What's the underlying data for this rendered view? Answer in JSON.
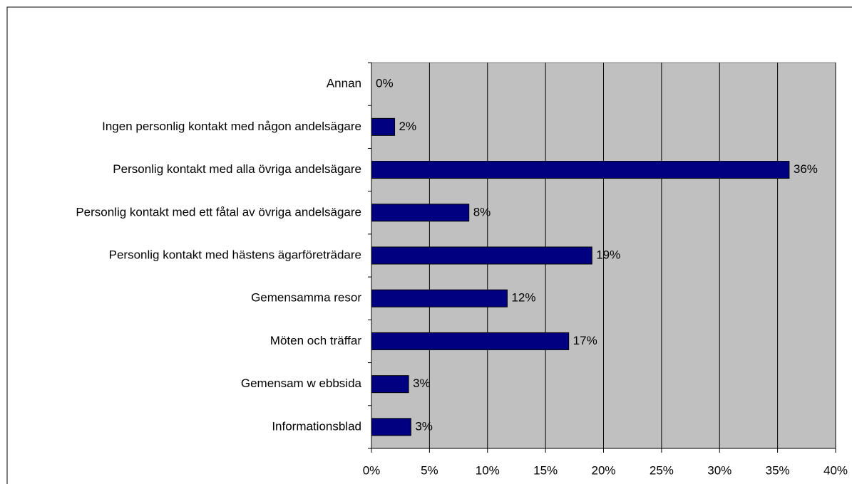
{
  "chart_data": {
    "type": "bar",
    "orientation": "horizontal",
    "categories": [
      "Annan",
      "Ingen personlig kontakt med någon andelsägare",
      "Personlig kontakt med alla övriga andelsägare",
      "Personlig kontakt med ett fåtal av övriga andelsägare",
      "Personlig kontakt med hästens ägarföreträdare",
      "Gemensamma resor",
      "Möten och träffar",
      "Gemensam w ebbsida",
      "Informationsblad"
    ],
    "values": [
      0,
      2,
      36,
      8.4,
      19,
      11.7,
      17,
      3.2,
      3.4
    ],
    "value_labels": [
      "0%",
      "2%",
      "36%",
      "8%",
      "19%",
      "12%",
      "17%",
      "3%",
      "3%"
    ],
    "color": "#000080",
    "xlim": [
      0,
      40
    ],
    "xticks": [
      {
        "value": 0,
        "label": "0%"
      },
      {
        "value": 5,
        "label": "5%"
      },
      {
        "value": 10,
        "label": "10%"
      },
      {
        "value": 15,
        "label": "15%"
      },
      {
        "value": 20,
        "label": "20%"
      },
      {
        "value": 25,
        "label": "25%"
      },
      {
        "value": 30,
        "label": "30%"
      },
      {
        "value": 35,
        "label": "35%"
      },
      {
        "value": 40,
        "label": "40%"
      }
    ],
    "grid": true
  }
}
